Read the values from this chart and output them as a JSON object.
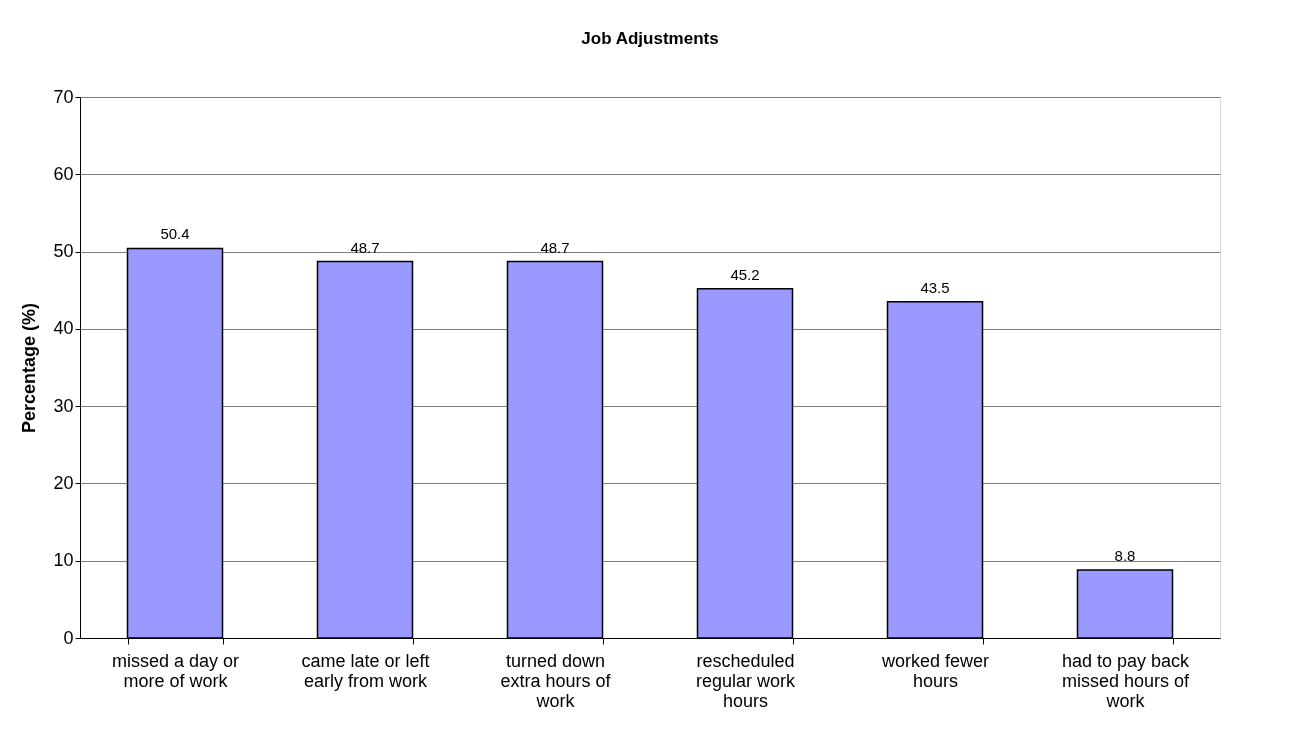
{
  "chart_data": {
    "type": "bar",
    "title": "Job Adjustments",
    "ylabel": "Percentage (%)",
    "categories": [
      "missed a day or\nmore of work",
      "came late or left\nearly from work",
      "turned down\nextra hours of\nwork",
      "rescheduled\nregular work\nhours",
      "worked fewer\nhours",
      "had to pay back\nmissed hours of\nwork"
    ],
    "values": [
      50.4,
      48.7,
      48.7,
      45.2,
      43.5,
      8.8
    ],
    "color": "#9999ff",
    "ylim": [
      0,
      70
    ],
    "yticks": [
      0,
      10,
      20,
      30,
      40,
      50,
      60,
      70
    ],
    "grid": "y",
    "data_labels": true
  }
}
